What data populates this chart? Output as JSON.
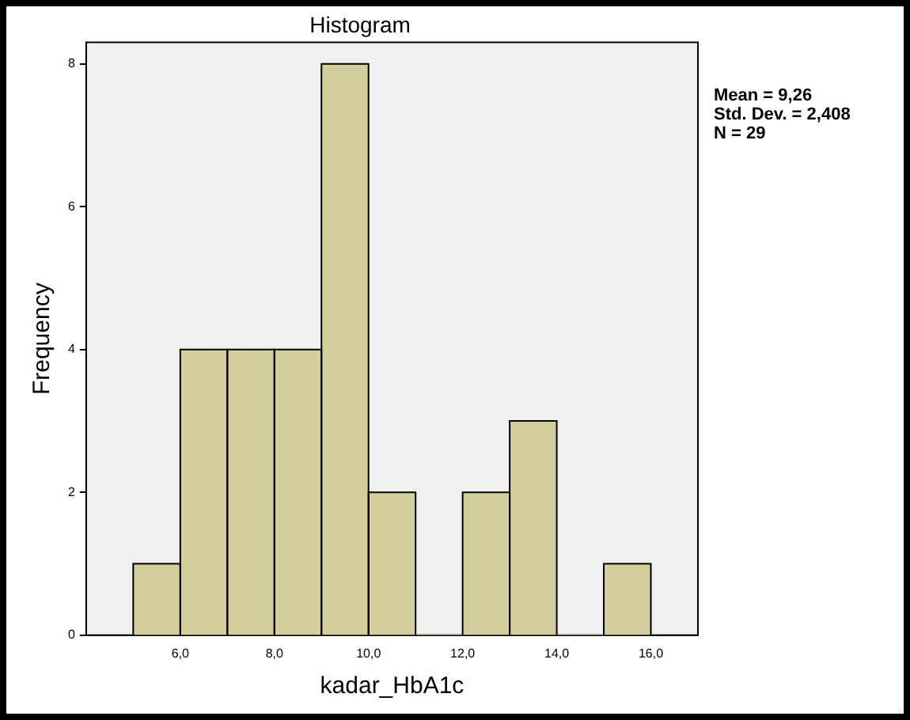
{
  "chart_data": {
    "type": "histogram",
    "title": "Histogram",
    "xlabel": "kadar_HbA1c",
    "ylabel": "Frequency",
    "bins": [
      5,
      6,
      7,
      8,
      9,
      10,
      11,
      12,
      13,
      14,
      15,
      16
    ],
    "values": [
      1,
      4,
      4,
      4,
      8,
      2,
      0,
      2,
      3,
      0,
      1
    ],
    "color": "#d3ce9c",
    "xlim": [
      4,
      17
    ],
    "xticks": [
      {
        "value": 6,
        "label": "6,0"
      },
      {
        "value": 8,
        "label": "8,0"
      },
      {
        "value": 10,
        "label": "10,0"
      },
      {
        "value": 12,
        "label": "12,0"
      },
      {
        "value": 14,
        "label": "14,0"
      },
      {
        "value": 16,
        "label": "16,0"
      }
    ],
    "ylim": [
      0,
      8.3
    ],
    "yticks": [
      0,
      2,
      4,
      6,
      8
    ],
    "grid": false,
    "legend": false,
    "annotations": [
      "Mean = 9,26",
      "Std. Dev. = 2,408",
      "N = 29"
    ]
  }
}
